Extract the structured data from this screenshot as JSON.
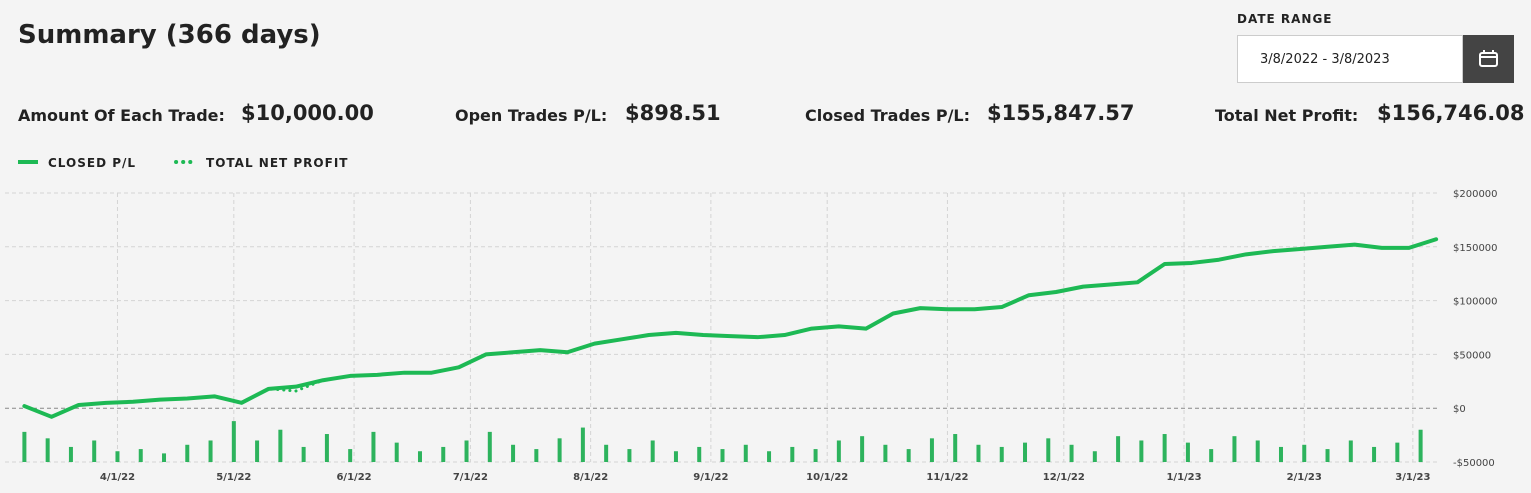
{
  "header": {
    "title": "Summary (366 days)",
    "date_range_label": "DATE RANGE",
    "date_range": "3/8/2022 - 3/8/2023"
  },
  "stats": [
    {
      "label": "Amount Of Each Trade:",
      "value": "$10,000.00"
    },
    {
      "label": "Open Trades P/L:",
      "value": "$898.51"
    },
    {
      "label": "Closed Trades P/L:",
      "value": "$155,847.57"
    },
    {
      "label": "Total Net Profit:",
      "value": "$156,746.08"
    }
  ],
  "chart_data": {
    "type": "line",
    "x": [
      "2022-03-08",
      "2022-03-15",
      "2022-03-22",
      "2022-03-29",
      "2022-04-05",
      "2022-04-12",
      "2022-04-19",
      "2022-04-26",
      "2022-05-03",
      "2022-05-10",
      "2022-05-17",
      "2022-05-24",
      "2022-05-31",
      "2022-06-07",
      "2022-06-14",
      "2022-06-21",
      "2022-06-28",
      "2022-07-05",
      "2022-07-12",
      "2022-07-19",
      "2022-07-26",
      "2022-08-02",
      "2022-08-09",
      "2022-08-16",
      "2022-08-23",
      "2022-08-30",
      "2022-09-06",
      "2022-09-13",
      "2022-09-20",
      "2022-09-27",
      "2022-10-04",
      "2022-10-11",
      "2022-10-18",
      "2022-10-25",
      "2022-11-01",
      "2022-11-08",
      "2022-11-15",
      "2022-11-22",
      "2022-11-29",
      "2022-12-06",
      "2022-12-13",
      "2022-12-20",
      "2022-12-27",
      "2023-01-03",
      "2023-01-10",
      "2023-01-17",
      "2023-01-24",
      "2023-01-31",
      "2023-02-07",
      "2023-02-14",
      "2023-02-21",
      "2023-02-28",
      "2023-03-07"
    ],
    "series": [
      {
        "name": "CLOSED P/L",
        "color": "#1db954",
        "style": "solid",
        "values": [
          2000,
          -8000,
          3000,
          5000,
          6000,
          8000,
          9000,
          11000,
          5000,
          18000,
          20000,
          26000,
          30000,
          31000,
          33000,
          33000,
          38000,
          50000,
          52000,
          54000,
          52000,
          60000,
          64000,
          68000,
          70000,
          68000,
          67000,
          66000,
          68000,
          74000,
          76000,
          74000,
          88000,
          93000,
          92000,
          92000,
          94000,
          105000,
          108000,
          113000,
          115000,
          117000,
          134000,
          135000,
          138000,
          143000,
          146000,
          148000,
          150000,
          152000,
          149000,
          149000,
          157000
        ]
      },
      {
        "name": "TOTAL NET PROFIT",
        "color": "#1db954",
        "style": "dotted",
        "values": [
          2000,
          -8000,
          3000,
          5000,
          6000,
          8000,
          9000,
          11000,
          5000,
          18000,
          16000,
          26000,
          30000,
          31000,
          33000,
          33000,
          38000,
          50000,
          52000,
          54000,
          52000,
          60000,
          64000,
          68000,
          70000,
          68000,
          67000,
          66000,
          68000,
          74000,
          76000,
          74000,
          88000,
          93000,
          92000,
          92000,
          94000,
          105000,
          108000,
          113000,
          115000,
          117000,
          134000,
          135000,
          138000,
          143000,
          146000,
          148000,
          150000,
          152000,
          149000,
          149000,
          157000
        ]
      }
    ],
    "bars": {
      "color": "#2db35d",
      "x": [
        "2022-03-08",
        "2022-03-14",
        "2022-03-20",
        "2022-03-26",
        "2022-04-01",
        "2022-04-07",
        "2022-04-13",
        "2022-04-19",
        "2022-04-25",
        "2022-05-01",
        "2022-05-07",
        "2022-05-13",
        "2022-05-19",
        "2022-05-25",
        "2022-05-31",
        "2022-06-06",
        "2022-06-12",
        "2022-06-18",
        "2022-06-24",
        "2022-06-30",
        "2022-07-06",
        "2022-07-12",
        "2022-07-18",
        "2022-07-24",
        "2022-07-30",
        "2022-08-05",
        "2022-08-11",
        "2022-08-17",
        "2022-08-23",
        "2022-08-29",
        "2022-09-04",
        "2022-09-10",
        "2022-09-16",
        "2022-09-22",
        "2022-09-28",
        "2022-10-04",
        "2022-10-10",
        "2022-10-16",
        "2022-10-22",
        "2022-10-28",
        "2022-11-03",
        "2022-11-09",
        "2022-11-15",
        "2022-11-21",
        "2022-11-27",
        "2022-12-03",
        "2022-12-09",
        "2022-12-15",
        "2022-12-21",
        "2022-12-27",
        "2023-01-02",
        "2023-01-08",
        "2023-01-14",
        "2023-01-20",
        "2023-01-26",
        "2023-02-01",
        "2023-02-07",
        "2023-02-13",
        "2023-02-19",
        "2023-02-25",
        "2023-03-03"
      ],
      "values": [
        -22000,
        -28000,
        -36000,
        -30000,
        -40000,
        -38000,
        -42000,
        -34000,
        -30000,
        -12000,
        -30000,
        -20000,
        -36000,
        -24000,
        -38000,
        -22000,
        -32000,
        -40000,
        -36000,
        -30000,
        -22000,
        -34000,
        -38000,
        -28000,
        -18000,
        -34000,
        -38000,
        -30000,
        -40000,
        -36000,
        -38000,
        -34000,
        -40000,
        -36000,
        -38000,
        -30000,
        -26000,
        -34000,
        -38000,
        -28000,
        -24000,
        -34000,
        -36000,
        -32000,
        -28000,
        -34000,
        -40000,
        -26000,
        -30000,
        -24000,
        -32000,
        -38000,
        -26000,
        -30000,
        -36000,
        -34000,
        -38000,
        -30000,
        -36000,
        -32000,
        -20000
      ]
    },
    "xlim": [
      "2022-03-03",
      "2023-03-08"
    ],
    "xticks": [
      {
        "value": "2022-04-01",
        "label": "4/1/22"
      },
      {
        "value": "2022-05-01",
        "label": "5/1/22"
      },
      {
        "value": "2022-06-01",
        "label": "6/1/22"
      },
      {
        "value": "2022-07-01",
        "label": "7/1/22"
      },
      {
        "value": "2022-08-01",
        "label": "8/1/22"
      },
      {
        "value": "2022-09-01",
        "label": "9/1/22"
      },
      {
        "value": "2022-10-01",
        "label": "10/1/22"
      },
      {
        "value": "2022-11-01",
        "label": "11/1/22"
      },
      {
        "value": "2022-12-01",
        "label": "12/1/22"
      },
      {
        "value": "2023-01-01",
        "label": "1/1/23"
      },
      {
        "value": "2023-02-01",
        "label": "2/1/23"
      },
      {
        "value": "2023-03-01",
        "label": "3/1/23"
      }
    ],
    "ylim": [
      -50000,
      200000
    ],
    "yticks": [
      {
        "value": -50000,
        "label": "-$50000"
      },
      {
        "value": 0,
        "label": "$0"
      },
      {
        "value": 50000,
        "label": "$50000"
      },
      {
        "value": 100000,
        "label": "$100000"
      },
      {
        "value": 150000,
        "label": "$150000"
      },
      {
        "value": 200000,
        "label": "$200000"
      }
    ],
    "grid": true
  }
}
